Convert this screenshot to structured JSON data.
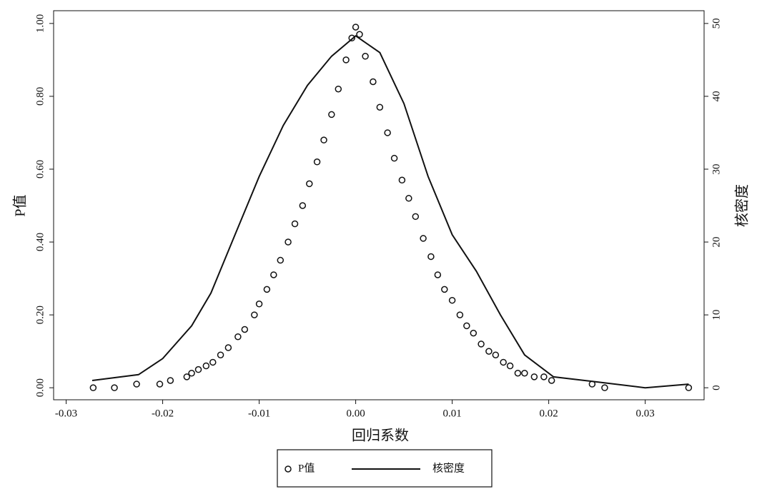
{
  "chart_data": {
    "type": "scatter",
    "x_label": "回归系数",
    "y_label": "P值",
    "y2_label": "核密度",
    "xlim": [
      -0.0313,
      0.0361
    ],
    "ylim": [
      -0.033,
      1.035
    ],
    "y2lim": [
      -1.65,
      51.75
    ],
    "xticks": [
      -0.03,
      -0.02,
      -0.01,
      {
        "value": 0,
        "label": "0.00"
      },
      0.01,
      0.02,
      0.03
    ],
    "yticks": [
      {
        "value": 0,
        "label": "0.00"
      },
      {
        "value": 0.2,
        "label": "0.20"
      },
      {
        "value": 0.4,
        "label": "0.40"
      },
      {
        "value": 0.6,
        "label": "0.60"
      },
      {
        "value": 0.8,
        "label": "0.80"
      },
      {
        "value": 1,
        "label": "1.00"
      }
    ],
    "y2ticks": [
      0,
      10,
      20,
      30,
      40,
      50
    ],
    "legend": "bottom",
    "series": [
      {
        "name": "P值",
        "type": "scatter",
        "color": "#111111",
        "x": [
          -0.0272,
          -0.025,
          -0.0227,
          -0.0203,
          -0.0192,
          -0.0175,
          -0.017,
          -0.0163,
          -0.0155,
          -0.0148,
          -0.014,
          -0.0132,
          -0.0122,
          -0.0115,
          -0.0105,
          -0.01,
          -0.0092,
          -0.0085,
          -0.0078,
          -0.007,
          -0.0063,
          -0.0055,
          -0.0048,
          -0.004,
          -0.0033,
          -0.0025,
          -0.0018,
          -0.001,
          -0.0004,
          0,
          0.0004,
          0.001,
          0.0018,
          0.0025,
          0.0033,
          0.004,
          0.0048,
          0.0055,
          0.0062,
          0.007,
          0.0078,
          0.0085,
          0.0092,
          0.01,
          0.0108,
          0.0115,
          0.0122,
          0.013,
          0.0138,
          0.0145,
          0.0153,
          0.016,
          0.0168,
          0.0175,
          0.0185,
          0.0195,
          0.0203,
          0.0245,
          0.0258,
          0.0345
        ],
        "values": [
          0,
          0,
          0.01,
          0.01,
          0.02,
          0.03,
          0.04,
          0.05,
          0.06,
          0.07,
          0.09,
          0.11,
          0.14,
          0.16,
          0.2,
          0.23,
          0.27,
          0.31,
          0.35,
          0.4,
          0.45,
          0.5,
          0.56,
          0.62,
          0.68,
          0.75,
          0.82,
          0.9,
          0.96,
          0.99,
          0.97,
          0.91,
          0.84,
          0.77,
          0.7,
          0.63,
          0.57,
          0.52,
          0.47,
          0.41,
          0.36,
          0.31,
          0.27,
          0.24,
          0.2,
          0.17,
          0.15,
          0.12,
          0.1,
          0.09,
          0.07,
          0.06,
          0.04,
          0.04,
          0.03,
          0.03,
          0.02,
          0.01,
          0,
          0
        ]
      },
      {
        "name": "核密度",
        "type": "line",
        "axis": "y2",
        "color": "#111111",
        "x": [
          -0.0273,
          -0.0225,
          -0.02,
          -0.017,
          -0.015,
          -0.0125,
          -0.01,
          -0.0075,
          -0.005,
          -0.0025,
          0,
          0.0025,
          0.005,
          0.0075,
          0.01,
          0.0125,
          0.015,
          0.0175,
          0.0205,
          0.025,
          0.03,
          0.0345
        ],
        "values": [
          1,
          1.8,
          4,
          8.5,
          13,
          21,
          29,
          36,
          41.5,
          45.5,
          48.3,
          46,
          39,
          29,
          21,
          16,
          10,
          4.5,
          1.5,
          0.8,
          0,
          0.5
        ]
      }
    ]
  }
}
